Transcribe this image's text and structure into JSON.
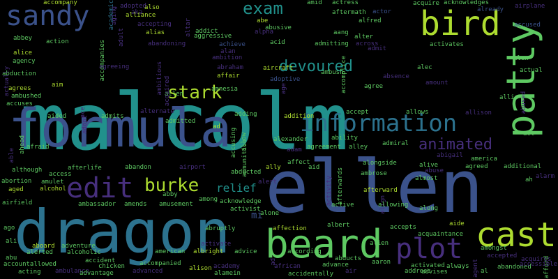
{
  "palette": {
    "background": "#000000",
    "dark_purple": "#472f7d",
    "indigo": "#3b528b",
    "blue": "#2c728e",
    "teal": "#21918c",
    "green": "#28ae80",
    "light_green": "#5ec962",
    "yellow_green": "#addc30"
  },
  "words": [
    {
      "text": "malcolm",
      "size": 112,
      "color": "#21918c"
    },
    {
      "text": "ellen",
      "size": 104,
      "color": "#3b528b"
    },
    {
      "text": "dragon",
      "size": 86,
      "color": "#2c728e"
    },
    {
      "text": "formula",
      "size": 76,
      "color": "#3b528b"
    },
    {
      "text": "beard",
      "size": 56,
      "color": "#5ec962"
    },
    {
      "text": "patty",
      "size": 56,
      "color": "#5ec962"
    },
    {
      "text": "cast",
      "size": 48,
      "color": "#addc30"
    },
    {
      "text": "bird",
      "size": 48,
      "color": "#addc30"
    },
    {
      "text": "sandy",
      "size": 40,
      "color": "#3b528b"
    },
    {
      "text": "edit",
      "size": 40,
      "color": "#472f7d"
    },
    {
      "text": "plot",
      "size": 40,
      "color": "#472f7d"
    },
    {
      "text": "information",
      "size": 34,
      "color": "#2c728e"
    },
    {
      "text": "burke",
      "size": 26,
      "color": "#addc30"
    },
    {
      "text": "stark",
      "size": 26,
      "color": "#addc30"
    },
    {
      "text": "exam",
      "size": 24,
      "color": "#21918c"
    },
    {
      "text": "devoured",
      "size": 22,
      "color": "#21918c"
    },
    {
      "text": "animated",
      "size": 22,
      "color": "#472f7d"
    },
    {
      "text": "relief",
      "size": 16,
      "color": "#21918c"
    },
    {
      "text": "mi",
      "size": 14,
      "color": "#3b528b"
    },
    {
      "text": "accompany",
      "size": 9,
      "color": "#addc30"
    },
    {
      "text": "academic",
      "size": 9,
      "color": "#2c728e"
    },
    {
      "text": "aka",
      "size": 9,
      "color": "#472f7d"
    },
    {
      "text": "adopted",
      "size": 9,
      "color": "#472f7d"
    },
    {
      "text": "also",
      "size": 9,
      "color": "#addc30"
    },
    {
      "text": "alliance",
      "size": 9,
      "color": "#addc30"
    },
    {
      "text": "accepting",
      "size": 9,
      "color": "#472f7d"
    },
    {
      "text": "alias",
      "size": 9,
      "color": "#addc30"
    },
    {
      "text": "abandoning",
      "size": 9,
      "color": "#472f7d"
    },
    {
      "text": "achieve",
      "size": 9,
      "color": "#3b528b"
    },
    {
      "text": "ambition",
      "size": 9,
      "color": "#472f7d"
    },
    {
      "text": "abraham",
      "size": 9,
      "color": "#472f7d"
    },
    {
      "text": "affair",
      "size": 9,
      "color": "#addc30"
    },
    {
      "text": "aircraft",
      "size": 9,
      "color": "#addc30"
    },
    {
      "text": "adoptive",
      "size": 9,
      "color": "#3b528b"
    },
    {
      "text": "age",
      "size": 9,
      "color": "#472f7d"
    },
    {
      "text": "amid",
      "size": 9,
      "color": "#5ec962"
    },
    {
      "text": "actress",
      "size": 9,
      "color": "#5ec962"
    },
    {
      "text": "actor",
      "size": 9,
      "color": "#3b528b"
    },
    {
      "text": "acquire",
      "size": 9,
      "color": "#5ec962"
    },
    {
      "text": "acknowledges",
      "size": 9,
      "color": "#5ec962"
    },
    {
      "text": "airplane",
      "size": 9,
      "color": "#472f7d"
    },
    {
      "text": "already",
      "size": 9,
      "color": "#3b528b"
    },
    {
      "text": "accused",
      "size": 9,
      "color": "#3b528b"
    },
    {
      "text": "alfred",
      "size": 9,
      "color": "#5ec962"
    },
    {
      "text": "aftermath",
      "size": 9,
      "color": "#5ec962"
    },
    {
      "text": "addict",
      "size": 9,
      "color": "#5ec962"
    },
    {
      "text": "aggressive",
      "size": 9,
      "color": "#5ec962"
    },
    {
      "text": "abe",
      "size": 9,
      "color": "#addc30"
    },
    {
      "text": "abusive",
      "size": 9,
      "color": "#5ec962"
    },
    {
      "text": "alpha",
      "size": 9,
      "color": "#472f7d"
    },
    {
      "text": "aang",
      "size": 9,
      "color": "#5ec962"
    },
    {
      "text": "alter",
      "size": 9,
      "color": "#5ec962"
    },
    {
      "text": "across",
      "size": 9,
      "color": "#472f7d"
    },
    {
      "text": "admit",
      "size": 9,
      "color": "#472f7d"
    },
    {
      "text": "activates",
      "size": 9,
      "color": "#5ec962"
    },
    {
      "text": "alan",
      "size": 9,
      "color": "#472f7d"
    },
    {
      "text": "acid",
      "size": 9,
      "color": "#5ec962"
    },
    {
      "text": "admitting",
      "size": 9,
      "color": "#5ec962"
    },
    {
      "text": "abbey",
      "size": 9,
      "color": "#5ec962"
    },
    {
      "text": "action",
      "size": 9,
      "color": "#5ec962"
    },
    {
      "text": "accompanies",
      "size": 9,
      "color": "#5ec962"
    },
    {
      "text": "alice",
      "size": 9,
      "color": "#addc30"
    },
    {
      "text": "agency",
      "size": 9,
      "color": "#5ec962"
    },
    {
      "text": "abduction",
      "size": 9,
      "color": "#5ec962"
    },
    {
      "text": "agrees",
      "size": 9,
      "color": "#addc30"
    },
    {
      "text": "ambushed",
      "size": 9,
      "color": "#5ec962"
    },
    {
      "text": "accuses",
      "size": 9,
      "color": "#5ec962"
    },
    {
      "text": "agreeing",
      "size": 9,
      "color": "#472f7d"
    },
    {
      "text": "aim",
      "size": 9,
      "color": "#addc30"
    },
    {
      "text": "allen",
      "size": 9,
      "color": "#5ec962"
    },
    {
      "text": "amnesia",
      "size": 9,
      "color": "#5ec962"
    },
    {
      "text": "ambush",
      "size": 9,
      "color": "#5ec962"
    },
    {
      "text": "absence",
      "size": 9,
      "color": "#472f7d"
    },
    {
      "text": "agree",
      "size": 9,
      "color": "#5ec962"
    },
    {
      "text": "amount",
      "size": 9,
      "color": "#472f7d"
    },
    {
      "text": "alec",
      "size": 9,
      "color": "#5ec962"
    },
    {
      "text": "alex",
      "size": 9,
      "color": "#5ec962"
    },
    {
      "text": "actual",
      "size": 9,
      "color": "#5ec962"
    },
    {
      "text": "allie",
      "size": 9,
      "color": "#5ec962"
    },
    {
      "text": "abused",
      "size": 9,
      "color": "#472f7d"
    },
    {
      "text": "aided",
      "size": 9,
      "color": "#5ec962"
    },
    {
      "text": "admits",
      "size": 9,
      "color": "#5ec962"
    },
    {
      "text": "alternate",
      "size": 9,
      "color": "#472f7d"
    },
    {
      "text": "admitted",
      "size": 9,
      "color": "#5ec962"
    },
    {
      "text": "adding",
      "size": 9,
      "color": "#5ec962"
    },
    {
      "text": "addition",
      "size": 9,
      "color": "#addc30"
    },
    {
      "text": "accept",
      "size": 9,
      "color": "#5ec962"
    },
    {
      "text": "allows",
      "size": 9,
      "color": "#5ec962"
    },
    {
      "text": "allison",
      "size": 9,
      "color": "#472f7d"
    },
    {
      "text": "alive",
      "size": 9,
      "color": "#5ec962"
    },
    {
      "text": "act",
      "size": 9,
      "color": "#5ec962"
    },
    {
      "text": "ad",
      "size": 9,
      "color": "#addc30"
    },
    {
      "text": "accusing",
      "size": 9,
      "color": "#5ec962"
    },
    {
      "text": "alexander",
      "size": 9,
      "color": "#5ec962"
    },
    {
      "text": "ability",
      "size": 9,
      "color": "#5ec962"
    },
    {
      "text": "adam",
      "size": 9,
      "color": "#472f7d"
    },
    {
      "text": "agreement",
      "size": 9,
      "color": "#5ec962"
    },
    {
      "text": "alley",
      "size": 9,
      "color": "#5ec962"
    },
    {
      "text": "admiral",
      "size": 9,
      "color": "#5ec962"
    },
    {
      "text": "abigail",
      "size": 9,
      "color": "#472f7d"
    },
    {
      "text": "america",
      "size": 9,
      "color": "#5ec962"
    },
    {
      "text": "agreed",
      "size": 9,
      "color": "#5ec962"
    },
    {
      "text": "additional",
      "size": 9,
      "color": "#5ec962"
    },
    {
      "text": "ah",
      "size": 9,
      "color": "#5ec962"
    },
    {
      "text": "alarm",
      "size": 9,
      "color": "#472f7d"
    },
    {
      "text": "able",
      "size": 9,
      "color": "#472f7d"
    },
    {
      "text": "ahead",
      "size": 9,
      "color": "#5ec962"
    },
    {
      "text": "afraid",
      "size": 9,
      "color": "#5ec962"
    },
    {
      "text": "although",
      "size": 9,
      "color": "#5ec962"
    },
    {
      "text": "access",
      "size": 9,
      "color": "#5ec962"
    },
    {
      "text": "afterlife",
      "size": 9,
      "color": "#5ec962"
    },
    {
      "text": "abandon",
      "size": 9,
      "color": "#5ec962"
    },
    {
      "text": "airport",
      "size": 9,
      "color": "#472f7d"
    },
    {
      "text": "abducted",
      "size": 9,
      "color": "#5ec962"
    },
    {
      "text": "ally",
      "size": 9,
      "color": "#addc30"
    },
    {
      "text": "affect",
      "size": 9,
      "color": "#5ec962"
    },
    {
      "text": "aid",
      "size": 9,
      "color": "#5ec962"
    },
    {
      "text": "alongside",
      "size": 9,
      "color": "#5ec962"
    },
    {
      "text": "ambrose",
      "size": 9,
      "color": "#5ec962"
    },
    {
      "text": "abuse",
      "size": 9,
      "color": "#472f7d"
    },
    {
      "text": "almost",
      "size": 9,
      "color": "#5ec962"
    },
    {
      "text": "abortion",
      "size": 9,
      "color": "#5ec962"
    },
    {
      "text": "amulet",
      "size": 9,
      "color": "#5ec962"
    },
    {
      "text": "aged",
      "size": 9,
      "color": "#addc30"
    },
    {
      "text": "alcohol",
      "size": 9,
      "color": "#addc30"
    },
    {
      "text": "airfield",
      "size": 9,
      "color": "#5ec962"
    },
    {
      "text": "ambassador",
      "size": 9,
      "color": "#5ec962"
    },
    {
      "text": "amends",
      "size": 9,
      "color": "#5ec962"
    },
    {
      "text": "abby",
      "size": 9,
      "color": "#5ec962"
    },
    {
      "text": "amusement",
      "size": 9,
      "color": "#5ec962"
    },
    {
      "text": "among",
      "size": 9,
      "color": "#5ec962"
    },
    {
      "text": "acknowledge",
      "size": 9,
      "color": "#5ec962"
    },
    {
      "text": "activist",
      "size": 9,
      "color": "#5ec962"
    },
    {
      "text": "alert",
      "size": 9,
      "color": "#472f7d"
    },
    {
      "text": "ago",
      "size": 9,
      "color": "#5ec962"
    },
    {
      "text": "abruptly",
      "size": 9,
      "color": "#5ec962"
    },
    {
      "text": "alone",
      "size": 9,
      "color": "#5ec962"
    },
    {
      "text": "affection",
      "size": 9,
      "color": "#addc30"
    },
    {
      "text": "albert",
      "size": 9,
      "color": "#5ec962"
    },
    {
      "text": "afterward",
      "size": 9,
      "color": "#addc30"
    },
    {
      "text": "align",
      "size": 9,
      "color": "#472f7d"
    },
    {
      "text": "allowing",
      "size": 9,
      "color": "#5ec962"
    },
    {
      "text": "active",
      "size": 9,
      "color": "#5ec962"
    },
    {
      "text": "along",
      "size": 9,
      "color": "#5ec962"
    },
    {
      "text": "aide",
      "size": 9,
      "color": "#addc30"
    },
    {
      "text": "accepts",
      "size": 9,
      "color": "#5ec962"
    },
    {
      "text": "acquaintance",
      "size": 9,
      "color": "#5ec962"
    },
    {
      "text": "ali",
      "size": 9,
      "color": "#5ec962"
    },
    {
      "text": "aboard",
      "size": 9,
      "color": "#addc30"
    },
    {
      "text": "adventure",
      "size": 9,
      "color": "#5ec962"
    },
    {
      "text": "alerted",
      "size": 9,
      "color": "#5ec962"
    },
    {
      "text": "alcoholic",
      "size": 9,
      "color": "#5ec962"
    },
    {
      "text": "american",
      "size": 9,
      "color": "#5ec962"
    },
    {
      "text": "albright",
      "size": 9,
      "color": "#addc30"
    },
    {
      "text": "activate",
      "size": 9,
      "color": "#472f7d"
    },
    {
      "text": "advice",
      "size": 9,
      "color": "#5ec962"
    },
    {
      "text": "according",
      "size": 9,
      "color": "#5ec962"
    },
    {
      "text": "abducts",
      "size": 9,
      "color": "#5ec962"
    },
    {
      "text": "aaron",
      "size": 9,
      "color": "#5ec962"
    },
    {
      "text": "alien",
      "size": 9,
      "color": "#5ec962"
    },
    {
      "text": "amongst",
      "size": 9,
      "color": "#5ec962"
    },
    {
      "text": "abu",
      "size": 9,
      "color": "#5ec962"
    },
    {
      "text": "accident",
      "size": 9,
      "color": "#5ec962"
    },
    {
      "text": "accountallowed",
      "size": 9,
      "color": "#5ec962"
    },
    {
      "text": "chicken",
      "size": 9,
      "color": "#5ec962"
    },
    {
      "text": "accompanied",
      "size": 9,
      "color": "#5ec962"
    },
    {
      "text": "alison",
      "size": 9,
      "color": "#addc30"
    },
    {
      "text": "academy",
      "size": 9,
      "color": "#472f7d"
    },
    {
      "text": "african",
      "size": 9,
      "color": "#472f7d"
    },
    {
      "text": "advance",
      "size": 9,
      "color": "#5ec962"
    },
    {
      "text": "activated",
      "size": 9,
      "color": "#5ec962"
    },
    {
      "text": "always",
      "size": 9,
      "color": "#5ec962"
    },
    {
      "text": "accepted",
      "size": 9,
      "color": "#472f7d"
    },
    {
      "text": "acquires",
      "size": 9,
      "color": "#472f7d"
    },
    {
      "text": "abandoned",
      "size": 9,
      "color": "#5ec962"
    },
    {
      "text": "afford",
      "size": 9,
      "color": "#5ec962"
    },
    {
      "text": "acting",
      "size": 9,
      "color": "#5ec962"
    },
    {
      "text": "ambulance",
      "size": 9,
      "color": "#472f7d"
    },
    {
      "text": "advantage",
      "size": 9,
      "color": "#5ec962"
    },
    {
      "text": "advanced",
      "size": 9,
      "color": "#472f7d"
    },
    {
      "text": "alamein",
      "size": 9,
      "color": "#5ec962"
    },
    {
      "text": "accidentally",
      "size": 9,
      "color": "#5ec962"
    },
    {
      "text": "air",
      "size": 9,
      "color": "#472f7d"
    },
    {
      "text": "address",
      "size": 9,
      "color": "#5ec962"
    },
    {
      "text": "advises",
      "size": 9,
      "color": "#5ec962"
    },
    {
      "text": "al",
      "size": 9,
      "color": "#5ec962"
    },
    {
      "text": "accessible",
      "size": 9,
      "color": "#472f7d"
    },
    {
      "text": "aging",
      "size": 9,
      "color": "#472f7d"
    },
    {
      "text": "adult",
      "size": 9,
      "color": "#472f7d"
    },
    {
      "text": "altar",
      "size": 9,
      "color": "#472f7d"
    },
    {
      "text": "ambitious",
      "size": 9,
      "color": "#472f7d"
    },
    {
      "text": "acquired",
      "size": 9,
      "color": "#472f7d"
    },
    {
      "text": "accomplice",
      "size": 9,
      "color": "#5ec962"
    },
    {
      "text": "allow",
      "size": 9,
      "color": "#5ec962"
    },
    {
      "text": "ammunition",
      "size": 9,
      "color": "#5ec962"
    },
    {
      "text": "activity",
      "size": 9,
      "color": "#472f7d"
    },
    {
      "text": "afterwards",
      "size": 9,
      "color": "#5ec962"
    },
    {
      "text": "ace",
      "size": 9,
      "color": "#472f7d"
    },
    {
      "text": "adopt",
      "size": 9,
      "color": "#472f7d"
    },
    {
      "text": "actually",
      "size": 9,
      "color": "#472f7d"
    },
    {
      "text": "ad",
      "size": 9,
      "color": "#472f7d"
    },
    {
      "text": "agent",
      "size": 9,
      "color": "#472f7d"
    }
  ]
}
